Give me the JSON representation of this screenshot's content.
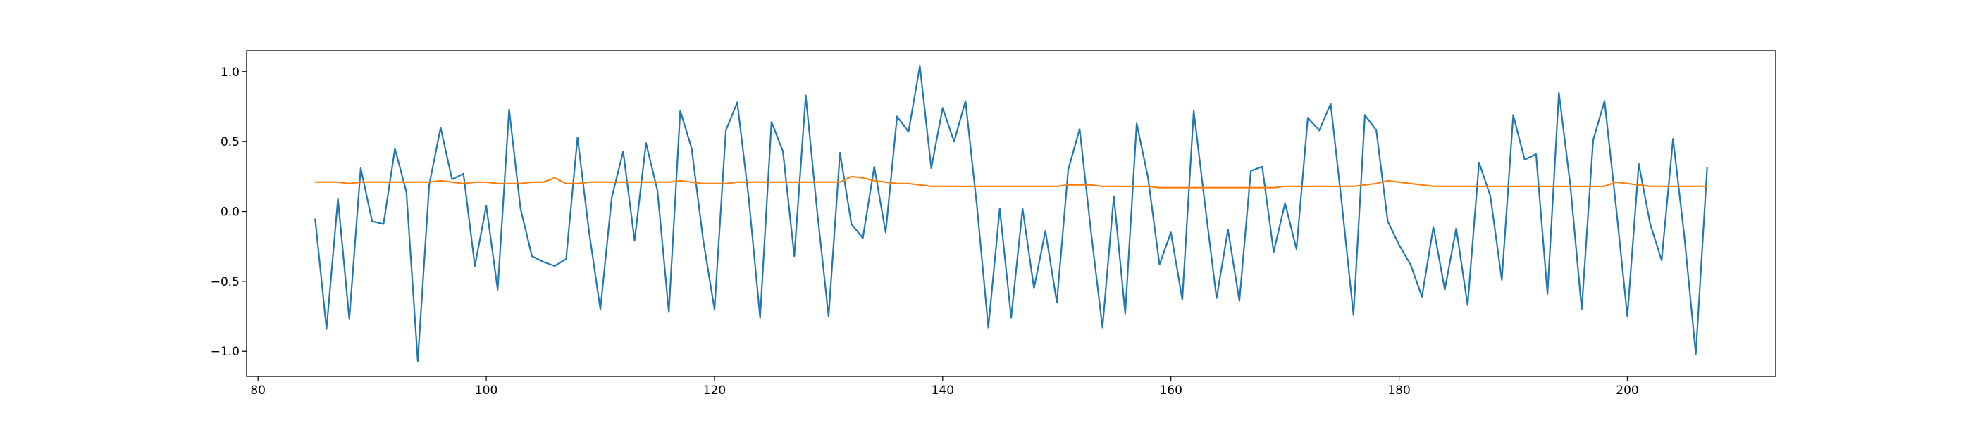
{
  "chart_data": {
    "type": "line",
    "title": "",
    "xlabel": "",
    "ylabel": "",
    "xlim": [
      79,
      213
    ],
    "ylim": [
      -1.18,
      1.15
    ],
    "x_ticks": [
      80,
      100,
      120,
      140,
      160,
      180,
      200
    ],
    "x_tick_labels": [
      "80",
      "100",
      "120",
      "140",
      "160",
      "180",
      "200"
    ],
    "y_ticks": [
      -1.0,
      -0.5,
      0.0,
      0.5,
      1.0
    ],
    "y_tick_labels": [
      "−1.0",
      "−0.5",
      "0.0",
      "0.5",
      "1.0"
    ],
    "grid": false,
    "legend": "none",
    "x_start": 85,
    "x_end": 207,
    "series": [
      {
        "color": "#1f77b4",
        "values": [
          -0.05,
          -0.84,
          0.09,
          -0.77,
          0.31,
          -0.07,
          -0.09,
          0.45,
          0.14,
          -1.07,
          0.19,
          0.6,
          0.23,
          0.27,
          -0.39,
          0.04,
          -0.56,
          0.73,
          0.02,
          -0.32,
          -0.36,
          -0.39,
          -0.34,
          0.53,
          -0.14,
          -0.7,
          0.1,
          0.43,
          -0.21,
          0.49,
          0.15,
          -0.72,
          0.72,
          0.45,
          -0.2,
          -0.7,
          0.58,
          0.78,
          0.1,
          -0.76,
          0.64,
          0.43,
          -0.32,
          0.83,
          0.0,
          -0.75,
          0.42,
          -0.09,
          -0.19,
          0.32,
          -0.15,
          0.68,
          0.57,
          1.04,
          0.31,
          0.74,
          0.5,
          0.79,
          0.04,
          -0.83,
          0.02,
          -0.76,
          0.02,
          -0.55,
          -0.14,
          -0.65,
          0.3,
          0.59,
          -0.15,
          -0.83,
          0.11,
          -0.73,
          0.63,
          0.24,
          -0.38,
          -0.15,
          -0.63,
          0.72,
          0.04,
          -0.62,
          -0.13,
          -0.64,
          0.29,
          0.32,
          -0.29,
          0.06,
          -0.27,
          0.67,
          0.58,
          0.77,
          0.04,
          -0.74,
          0.69,
          0.58,
          -0.07,
          -0.24,
          -0.38,
          -0.61,
          -0.11,
          -0.56,
          -0.12,
          -0.67,
          0.35,
          0.11,
          -0.49,
          0.69,
          0.37,
          0.41,
          -0.59,
          0.85,
          0.19,
          -0.7,
          0.51,
          0.79,
          0.04,
          -0.75,
          0.34,
          -0.09,
          -0.35,
          0.52,
          -0.18,
          -1.02,
          0.32
        ]
      },
      {
        "color": "#ff7f0e",
        "values": [
          0.21,
          0.21,
          0.21,
          0.2,
          0.21,
          0.21,
          0.21,
          0.21,
          0.21,
          0.21,
          0.21,
          0.22,
          0.21,
          0.2,
          0.21,
          0.21,
          0.2,
          0.2,
          0.2,
          0.21,
          0.21,
          0.24,
          0.2,
          0.2,
          0.21,
          0.21,
          0.21,
          0.21,
          0.21,
          0.21,
          0.21,
          0.21,
          0.22,
          0.21,
          0.2,
          0.2,
          0.2,
          0.21,
          0.21,
          0.21,
          0.21,
          0.21,
          0.21,
          0.21,
          0.21,
          0.21,
          0.21,
          0.25,
          0.24,
          0.22,
          0.21,
          0.2,
          0.2,
          0.19,
          0.18,
          0.18,
          0.18,
          0.18,
          0.18,
          0.18,
          0.18,
          0.18,
          0.18,
          0.18,
          0.18,
          0.18,
          0.19,
          0.19,
          0.19,
          0.18,
          0.18,
          0.18,
          0.18,
          0.18,
          0.17,
          0.17,
          0.17,
          0.17,
          0.17,
          0.17,
          0.17,
          0.17,
          0.17,
          0.17,
          0.17,
          0.18,
          0.18,
          0.18,
          0.18,
          0.18,
          0.18,
          0.18,
          0.19,
          0.2,
          0.22,
          0.21,
          0.2,
          0.19,
          0.18,
          0.18,
          0.18,
          0.18,
          0.18,
          0.18,
          0.18,
          0.18,
          0.18,
          0.18,
          0.18,
          0.18,
          0.18,
          0.18,
          0.18,
          0.18,
          0.21,
          0.2,
          0.19,
          0.18,
          0.18,
          0.18,
          0.18,
          0.18,
          0.18
        ]
      }
    ]
  }
}
